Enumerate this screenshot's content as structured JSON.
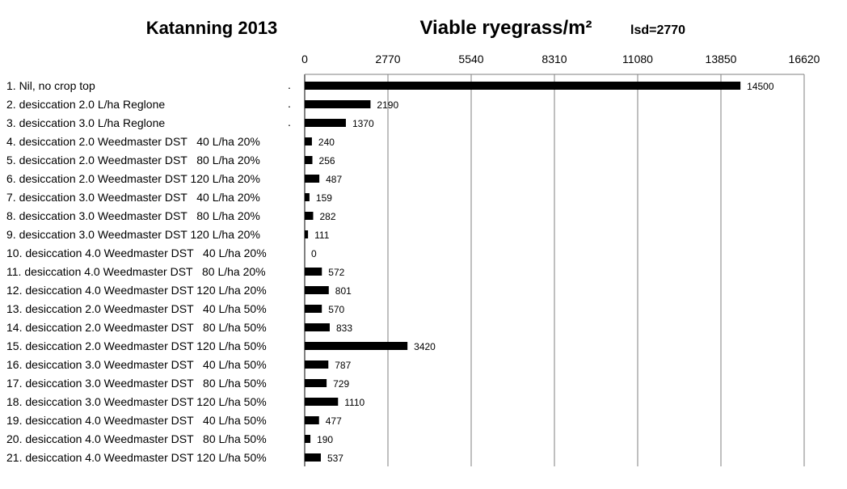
{
  "chart_data": {
    "type": "bar",
    "orientation": "horizontal",
    "title": "Katanning 2013",
    "subtitle": "Viable ryegrass/m²",
    "annotation": "lsd=2770",
    "xlim": [
      0,
      16620
    ],
    "x_ticks": [
      "0",
      "2770",
      "5540",
      "8310",
      "11080",
      "13850",
      "16620"
    ],
    "grid": true,
    "categories": [
      "1. Nil, no crop top",
      "2. desiccation 2.0 L/ha Reglone",
      "3. desiccation 3.0 L/ha Reglone",
      "4. desiccation 2.0 Weedmaster DST   40 L/ha 20%",
      "5. desiccation 2.0 Weedmaster DST   80 L/ha 20%",
      "6. desiccation 2.0 Weedmaster DST 120 L/ha 20%",
      "7. desiccation 3.0 Weedmaster DST   40 L/ha 20%",
      "8. desiccation 3.0 Weedmaster DST   80 L/ha 20%",
      "9. desiccation 3.0 Weedmaster DST 120 L/ha 20%",
      "10. desiccation 4.0 Weedmaster DST   40 L/ha 20%",
      "11. desiccation 4.0 Weedmaster DST   80 L/ha 20%",
      "12. desiccation 4.0 Weedmaster DST 120 L/ha 20%",
      "13. desiccation 2.0 Weedmaster DST   40 L/ha 50%",
      "14. desiccation 2.0 Weedmaster DST   80 L/ha 50%",
      "15. desiccation 2.0 Weedmaster DST 120 L/ha 50%",
      "16. desiccation 3.0 Weedmaster DST   40 L/ha 50%",
      "17. desiccation 3.0 Weedmaster DST   80 L/ha 50%",
      "18. desiccation 3.0 Weedmaster DST 120 L/ha 50%",
      "19. desiccation 4.0 Weedmaster DST   40 L/ha 50%",
      "20. desiccation 4.0 Weedmaster DST   80 L/ha 50%",
      "21. desiccation 4.0 Weedmaster DST 120 L/ha 50%"
    ],
    "category_suffix": [
      "        .",
      "        .",
      "        .",
      "",
      "",
      "",
      "",
      "",
      "",
      "",
      "",
      "",
      "",
      "",
      "",
      "",
      "",
      "",
      "",
      "",
      ""
    ],
    "values": [
      14500,
      2190,
      1370,
      240,
      256,
      487,
      159,
      282,
      111,
      0,
      572,
      801,
      570,
      833,
      3420,
      787,
      729,
      1110,
      477,
      190,
      537
    ],
    "value_labels": [
      "14500",
      "2190",
      "1370",
      "240",
      "256",
      "487",
      "159",
      "282",
      "111",
      "0",
      "572",
      "801",
      "570",
      "833",
      "3420",
      "787",
      "729",
      "1110",
      "477",
      "190",
      "537"
    ],
    "bar_color": "#000000",
    "grid_color": "#7f7f7f"
  }
}
